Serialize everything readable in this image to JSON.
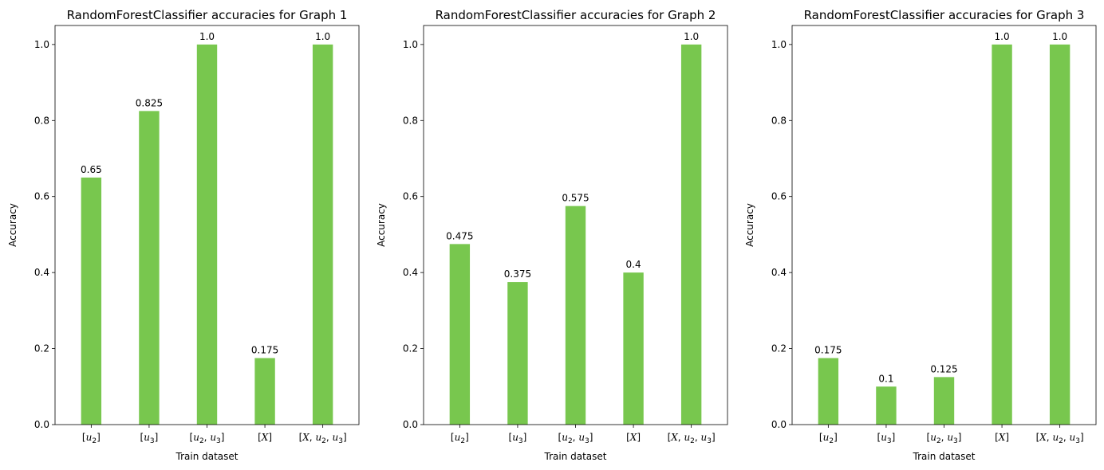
{
  "bar_color": "#78c74e",
  "chart_data": [
    {
      "type": "bar",
      "title": "RandomForestClassifier accuracies for Graph 1",
      "xlabel": "Train dataset",
      "ylabel": "Accuracy",
      "categories": [
        "[u2]",
        "[u3]",
        "[u2, u3]",
        "[X]",
        "[X, u2, u3]"
      ],
      "values": [
        0.65,
        0.825,
        1.0,
        0.175,
        1.0
      ],
      "value_labels": [
        "0.65",
        "0.825",
        "1.0",
        "0.175",
        "1.0"
      ],
      "ylim": [
        0,
        1.05
      ],
      "yticks": [
        0.0,
        0.2,
        0.4,
        0.6,
        0.8,
        1.0
      ],
      "ytick_labels": [
        "0.0",
        "0.2",
        "0.4",
        "0.6",
        "0.8",
        "1.0"
      ],
      "grid": false
    },
    {
      "type": "bar",
      "title": "RandomForestClassifier accuracies for Graph 2",
      "xlabel": "Train dataset",
      "ylabel": "Accuracy",
      "categories": [
        "[u2]",
        "[u3]",
        "[u2, u3]",
        "[X]",
        "[X, u2, u3]"
      ],
      "values": [
        0.475,
        0.375,
        0.575,
        0.4,
        1.0
      ],
      "value_labels": [
        "0.475",
        "0.375",
        "0.575",
        "0.4",
        "1.0"
      ],
      "ylim": [
        0,
        1.05
      ],
      "yticks": [
        0.0,
        0.2,
        0.4,
        0.6,
        0.8,
        1.0
      ],
      "ytick_labels": [
        "0.0",
        "0.2",
        "0.4",
        "0.6",
        "0.8",
        "1.0"
      ],
      "grid": false
    },
    {
      "type": "bar",
      "title": "RandomForestClassifier accuracies for Graph 3",
      "xlabel": "Train dataset",
      "ylabel": "Accuracy",
      "categories": [
        "[u2]",
        "[u3]",
        "[u2, u3]",
        "[X]",
        "[X, u2, u3]"
      ],
      "values": [
        0.175,
        0.1,
        0.125,
        1.0,
        1.0
      ],
      "value_labels": [
        "0.175",
        "0.1",
        "0.125",
        "1.0",
        "1.0"
      ],
      "ylim": [
        0,
        1.05
      ],
      "yticks": [
        0.0,
        0.2,
        0.4,
        0.6,
        0.8,
        1.0
      ],
      "ytick_labels": [
        "0.0",
        "0.2",
        "0.4",
        "0.6",
        "0.8",
        "1.0"
      ],
      "grid": false
    }
  ]
}
